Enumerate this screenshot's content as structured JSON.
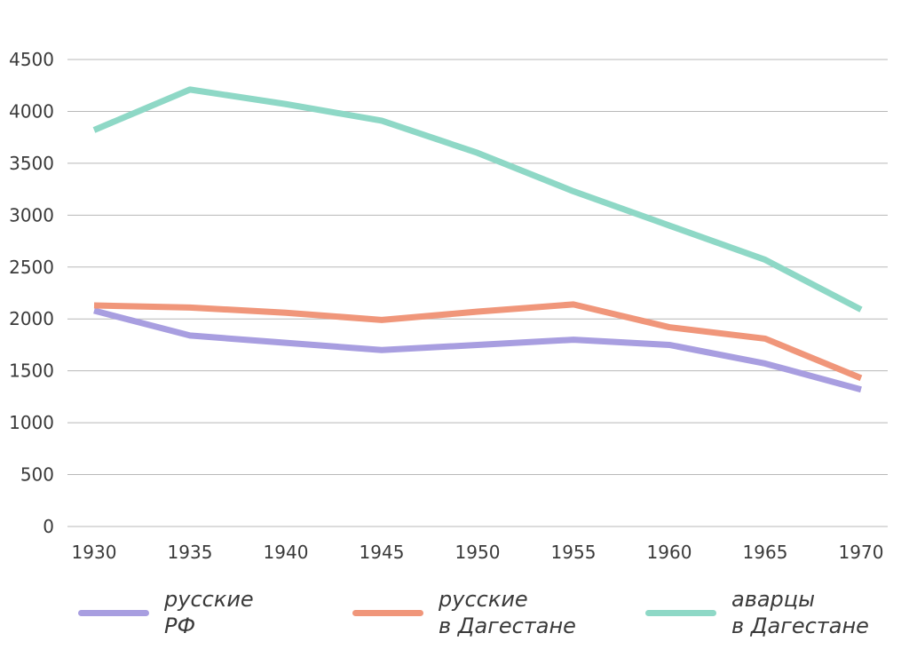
{
  "chart_data": {
    "type": "line",
    "x": [
      1930,
      1935,
      1940,
      1945,
      1950,
      1955,
      1960,
      1965,
      1970
    ],
    "x_tick_labels": [
      "1930",
      "1935",
      "1940",
      "1945",
      "1950",
      "1955",
      "1960",
      "1965",
      "1970"
    ],
    "y_ticks": [
      0,
      500,
      1000,
      1500,
      2000,
      2500,
      3000,
      3500,
      4000,
      4500
    ],
    "y_tick_labels": [
      "0",
      "500",
      "1000",
      "1500",
      "2000",
      "2500",
      "3000",
      "3500",
      "4000",
      "4500"
    ],
    "ylim": [
      0,
      4500
    ],
    "grid": "horizontal",
    "legend_position": "bottom",
    "series": [
      {
        "name_line1": "русские",
        "name_line2": "РФ",
        "color": "#a89ee0",
        "values": [
          2080,
          1840,
          1770,
          1700,
          1750,
          1800,
          1750,
          1570,
          1320
        ]
      },
      {
        "name_line1": "русские",
        "name_line2": "в Дагестане",
        "color": "#f0967a",
        "values": [
          2130,
          2110,
          2060,
          1990,
          2070,
          2140,
          1920,
          1810,
          1430
        ]
      },
      {
        "name_line1": "аварцы",
        "name_line2": "в Дагестане",
        "color": "#8ed8c6",
        "values": [
          3820,
          4210,
          4070,
          3910,
          3600,
          3230,
          2900,
          2570,
          2090
        ]
      }
    ]
  }
}
